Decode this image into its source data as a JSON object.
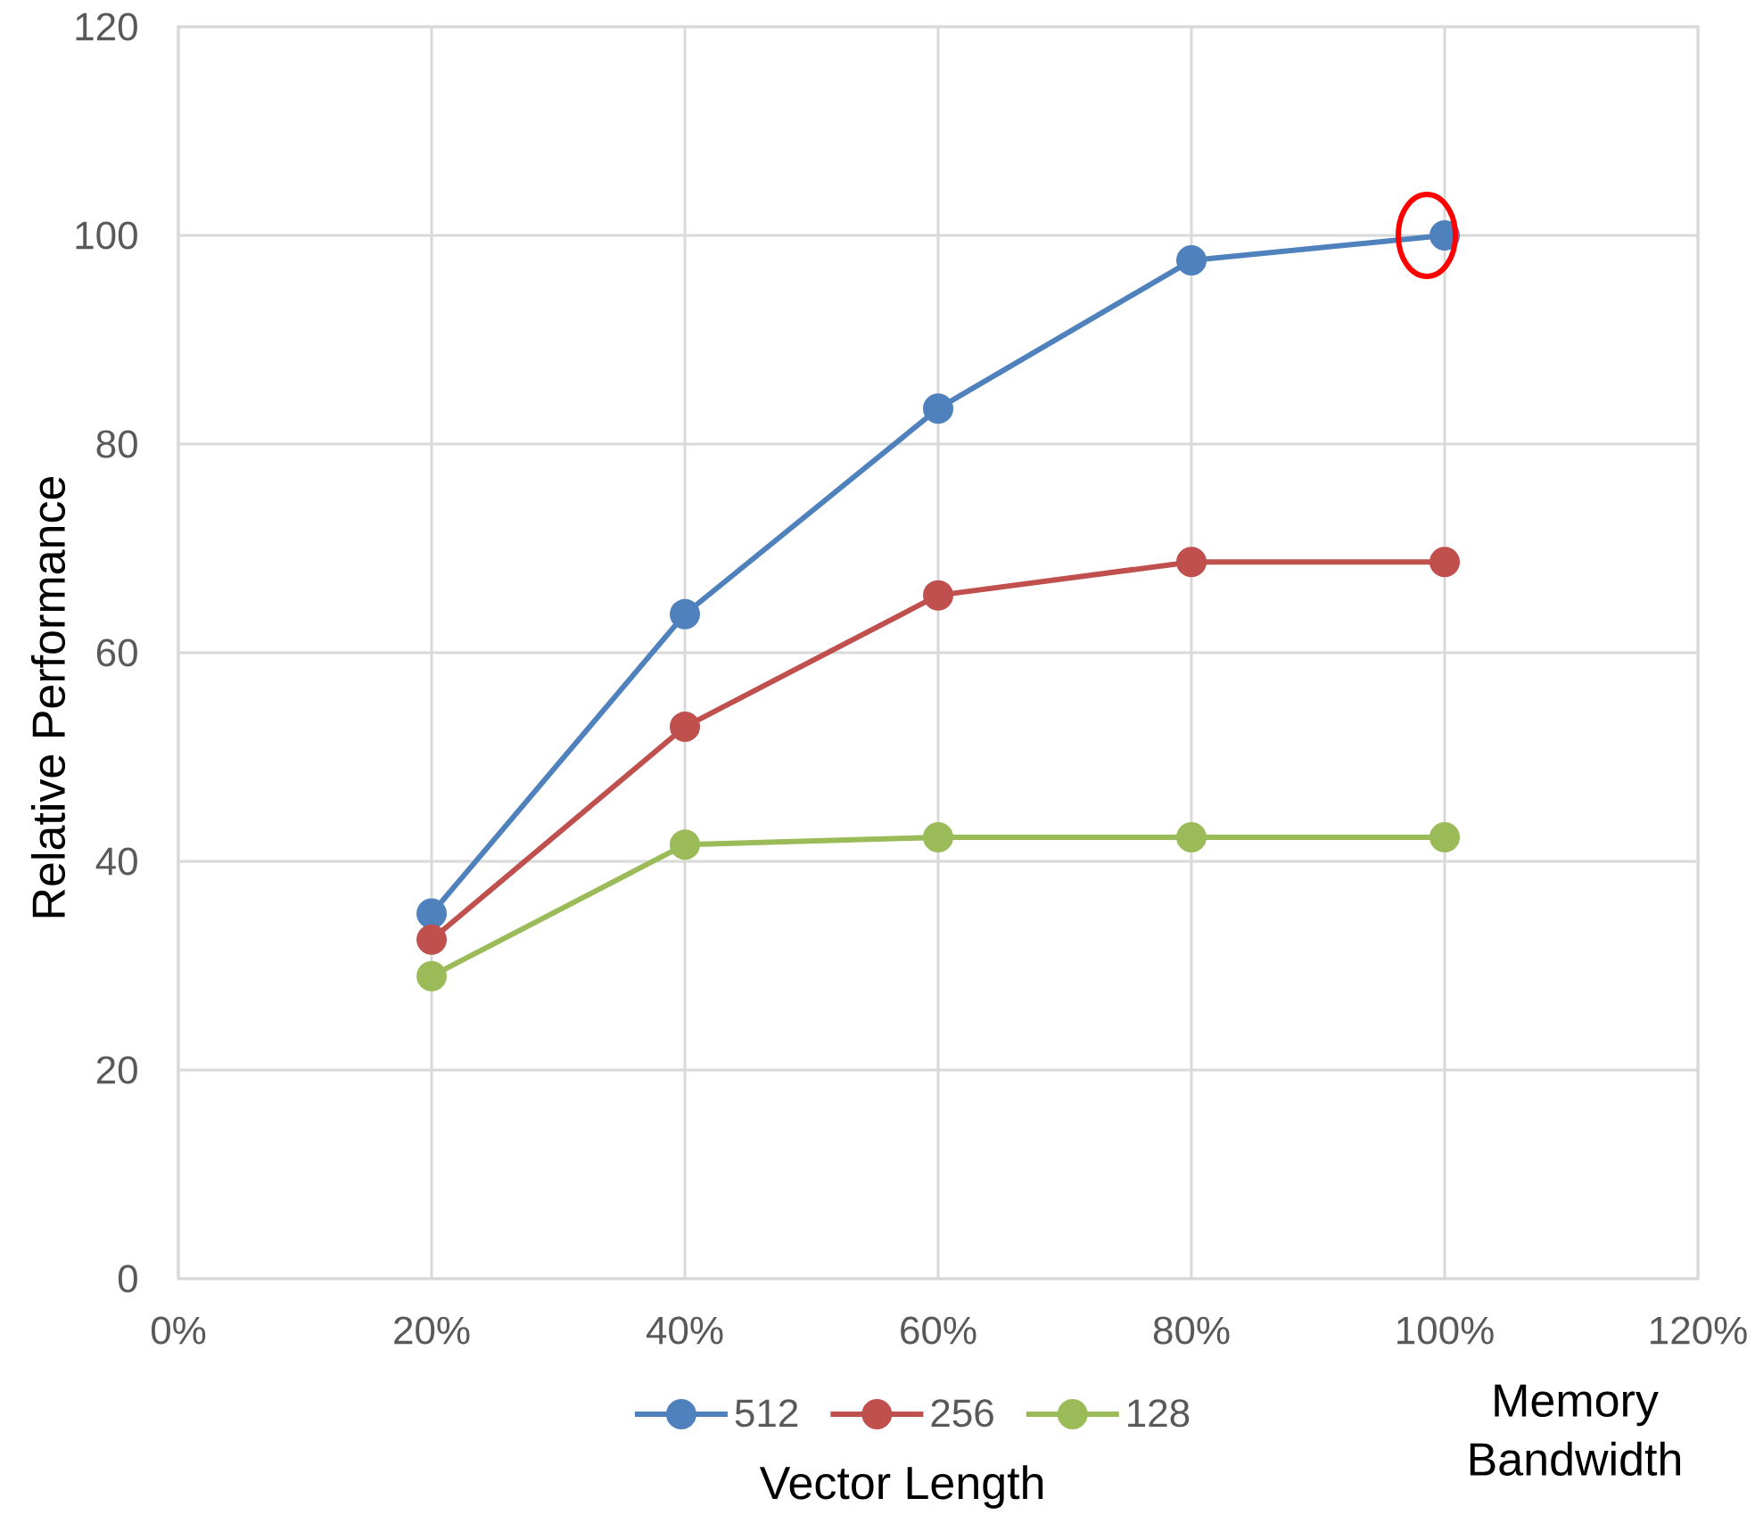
{
  "chart_data": {
    "type": "line",
    "xlabel": "Memory Bandwidth",
    "ylabel": "Relative Performance",
    "legend_title": "Vector Length",
    "x": [
      20,
      40,
      60,
      80,
      100
    ],
    "series": [
      {
        "name": "512",
        "color": "#4f81bd",
        "values": [
          35.0,
          63.7,
          83.4,
          97.6,
          100
        ]
      },
      {
        "name": "256",
        "color": "#c0504d",
        "values": [
          32.5,
          52.9,
          65.5,
          68.7,
          68.7
        ]
      },
      {
        "name": "128",
        "color": "#9bbb59",
        "values": [
          29.0,
          41.6,
          42.3,
          42.3,
          42.3
        ]
      }
    ],
    "xlim": [
      0,
      120
    ],
    "ylim": [
      0,
      120
    ],
    "xticks": [
      {
        "value": 0,
        "label": "0%"
      },
      {
        "value": 20,
        "label": "20%"
      },
      {
        "value": 40,
        "label": "40%"
      },
      {
        "value": 60,
        "label": "60%"
      },
      {
        "value": 80,
        "label": "80%"
      },
      {
        "value": 100,
        "label": "100%"
      },
      {
        "value": 120,
        "label": "120%"
      }
    ],
    "yticks": [
      0,
      20,
      40,
      60,
      80,
      100,
      120
    ],
    "grid": true,
    "legend": "bottom",
    "marker": "circle",
    "line_style": "solid"
  }
}
